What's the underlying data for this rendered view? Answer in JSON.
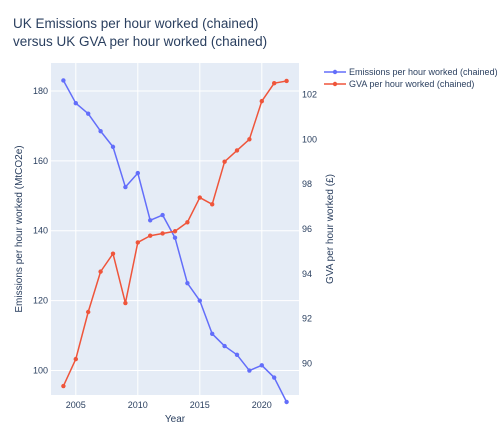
{
  "chart_data": {
    "type": "line",
    "title_line1": "UK Emissions per hour worked (chained)",
    "title_line2": "versus UK GVA per hour worked (chained)",
    "xlabel": "Year",
    "ylabel_left": "Emissions per hour worked (MtCO2e)",
    "ylabel_right": "GVA per hour worked (£)",
    "xlim": [
      2003,
      2023
    ],
    "ylim_left": [
      93,
      188
    ],
    "ylim_right": [
      88.6,
      103.4
    ],
    "x_ticks": [
      2005,
      2010,
      2015,
      2020
    ],
    "y_ticks_left": [
      100,
      120,
      140,
      160,
      180
    ],
    "y_ticks_right": [
      90,
      92,
      94,
      96,
      98,
      100,
      102
    ],
    "grid": true,
    "legend_position": "top-right",
    "x": [
      2004,
      2005,
      2006,
      2007,
      2008,
      2009,
      2010,
      2011,
      2012,
      2013,
      2014,
      2015,
      2016,
      2017,
      2018,
      2019,
      2020,
      2021,
      2022
    ],
    "series": [
      {
        "name": "Emissions per hour worked (chained)",
        "axis": "left",
        "color": "#636efa",
        "values": [
          183,
          176.5,
          173.5,
          168.5,
          164,
          152.5,
          156.5,
          143,
          144.5,
          138,
          125,
          120,
          110.5,
          107,
          104.5,
          100,
          101.5,
          98,
          91
        ]
      },
      {
        "name": "GVA per hour worked (chained)",
        "axis": "right",
        "color": "#ef553b",
        "values": [
          89.0,
          90.2,
          92.3,
          94.1,
          94.9,
          92.7,
          95.4,
          95.7,
          95.8,
          95.9,
          96.3,
          97.4,
          97.1,
          99.0,
          99.5,
          100.0,
          101.7,
          102.5,
          102.6
        ]
      }
    ]
  }
}
